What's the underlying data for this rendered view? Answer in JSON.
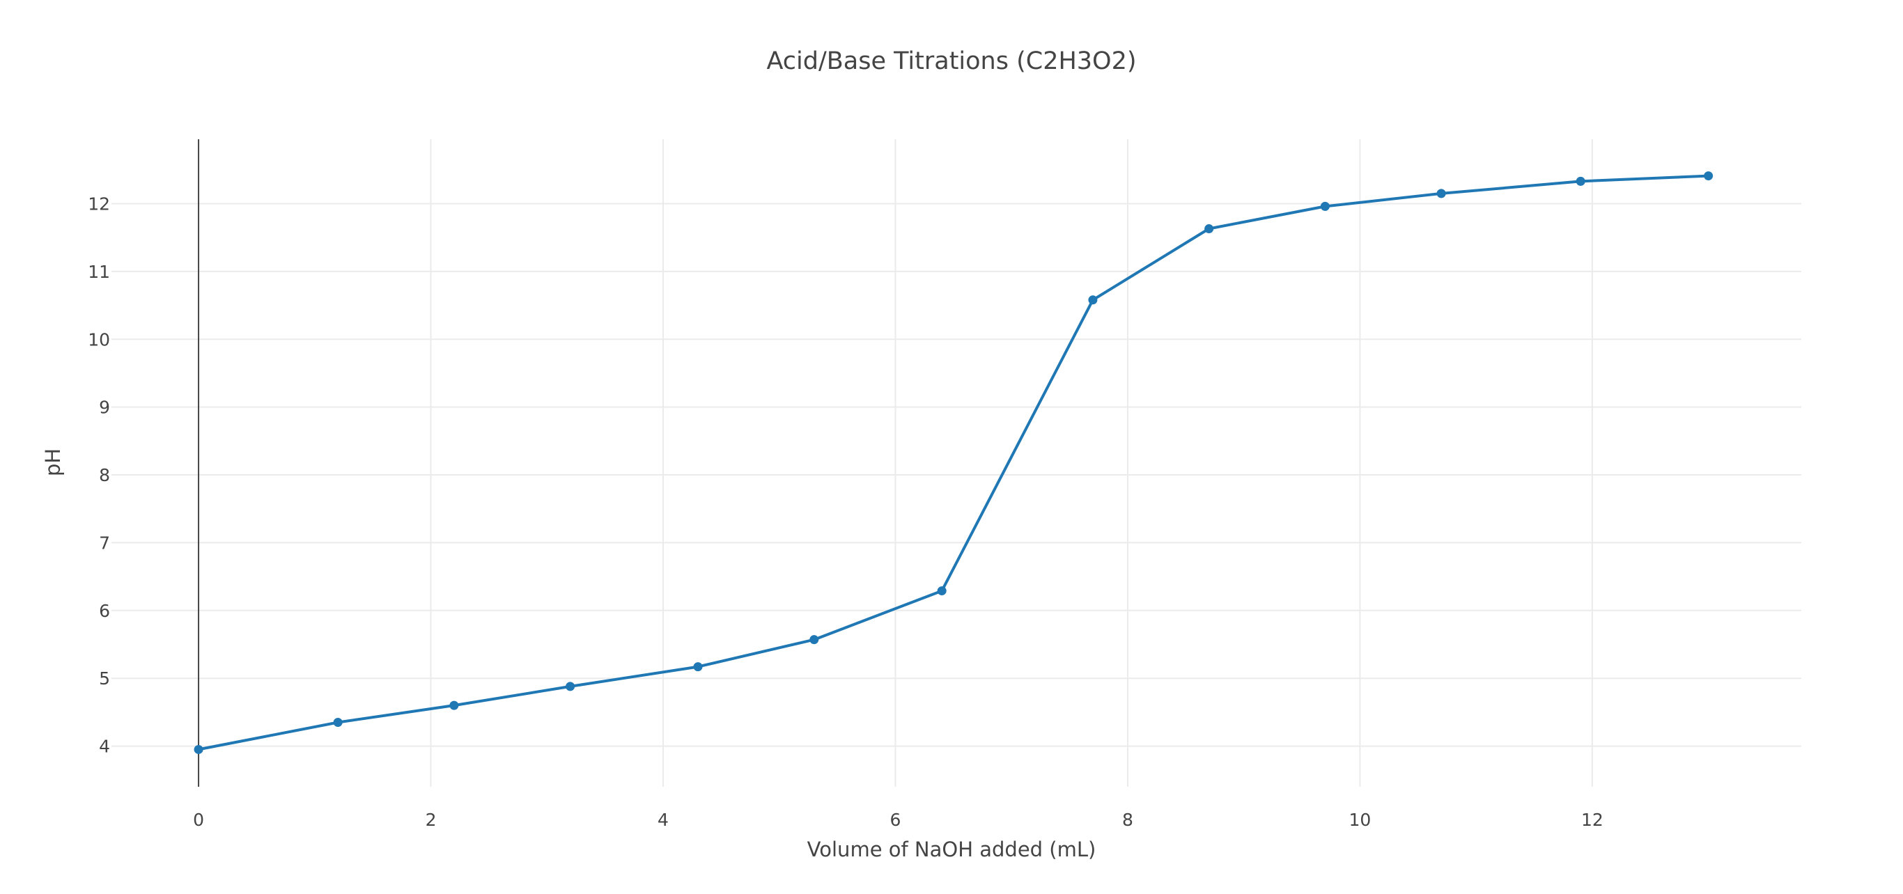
{
  "chart_data": {
    "type": "line",
    "title": "Acid/Base Titrations (C2H3O2)",
    "xlabel": "Volume of NaOH added (mL)",
    "ylabel": "pH",
    "xlim": [
      -0.75,
      13.8
    ],
    "ylim": [
      3.4,
      12.95
    ],
    "xticks": [
      0,
      2,
      4,
      6,
      8,
      10,
      12
    ],
    "yticks": [
      4,
      5,
      6,
      7,
      8,
      9,
      10,
      11,
      12
    ],
    "grid": true,
    "legend": "none",
    "series": [
      {
        "color": "#1f77b4",
        "mode": "lines+markers",
        "x": [
          0,
          1.2,
          2.2,
          3.2,
          4.3,
          5.3,
          6.4,
          7.7,
          8.7,
          9.7,
          10.7,
          11.9,
          13.0
        ],
        "y": [
          3.95,
          4.35,
          4.6,
          4.88,
          5.17,
          5.57,
          6.29,
          10.58,
          11.63,
          11.96,
          12.15,
          12.33,
          12.41
        ]
      }
    ]
  }
}
